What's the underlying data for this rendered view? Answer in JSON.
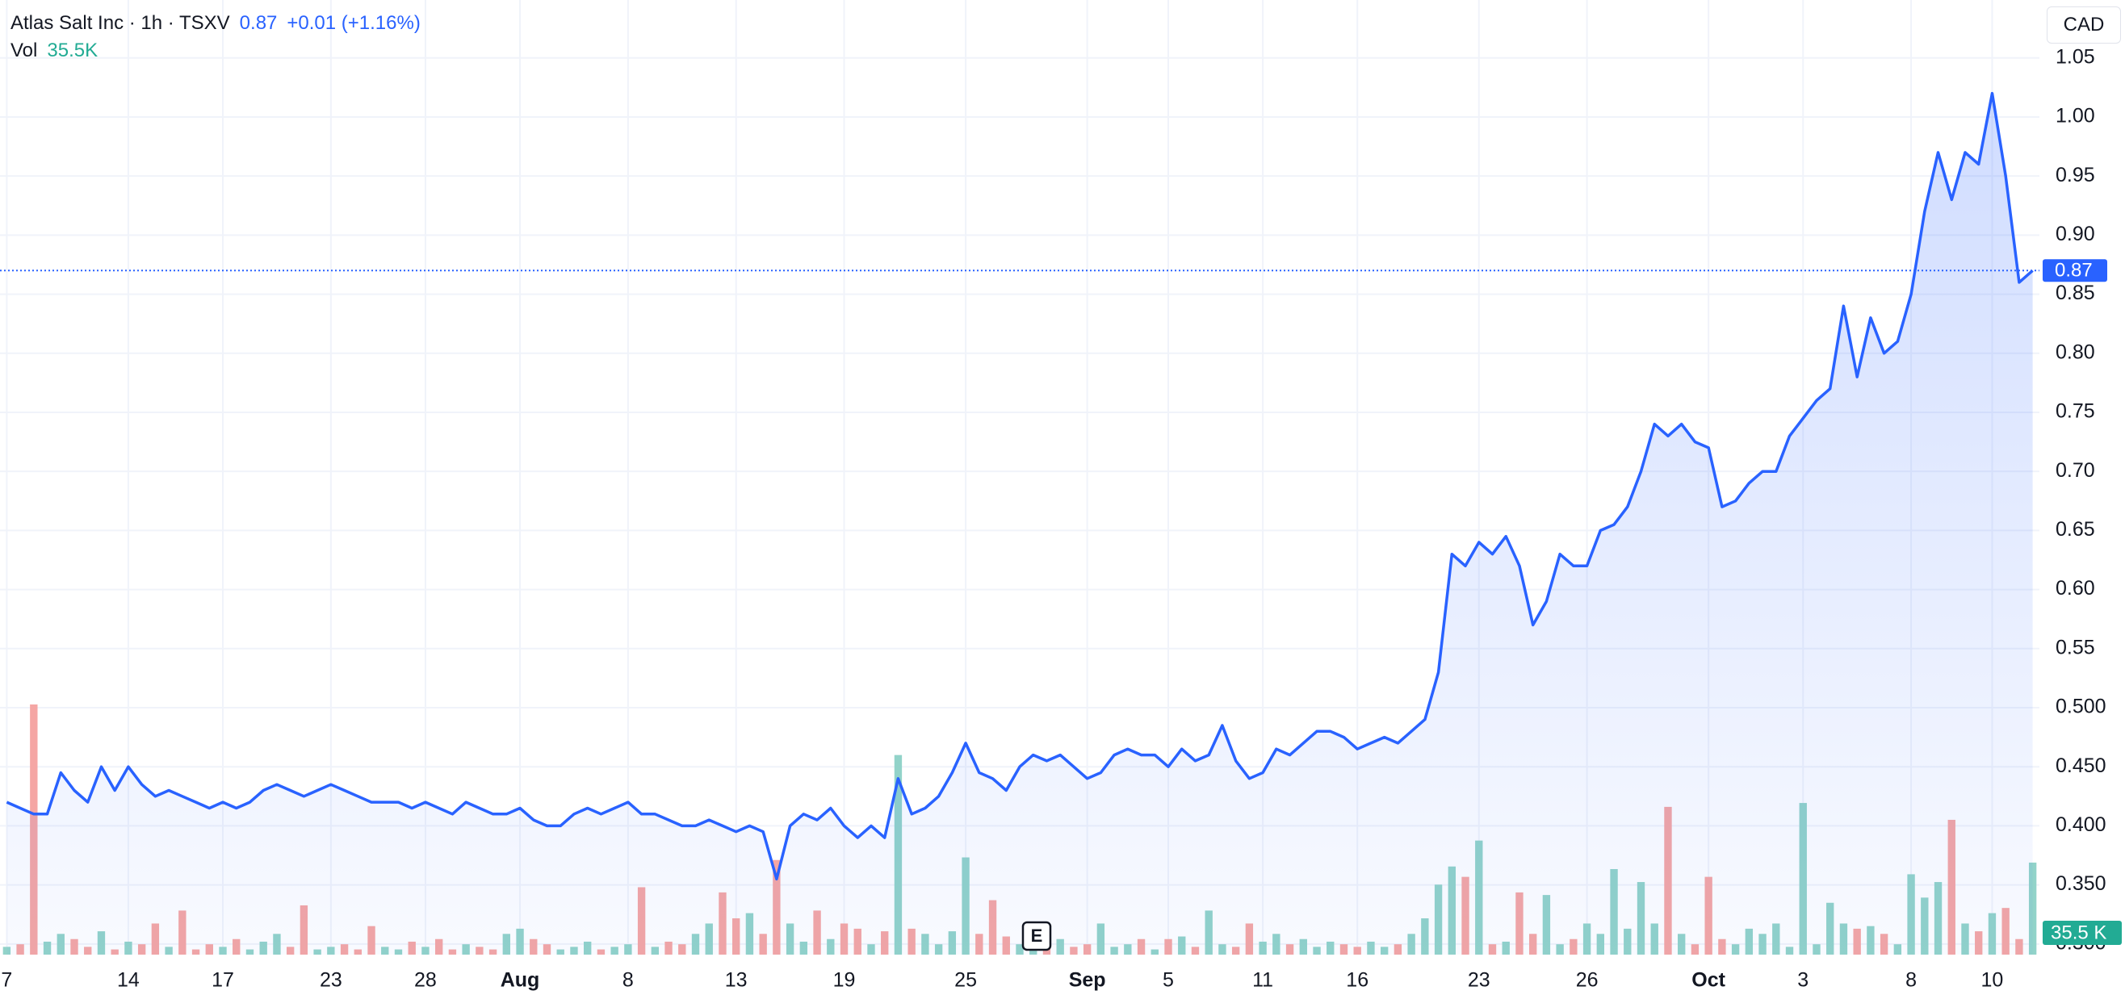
{
  "chart_data": {
    "type": "line",
    "title": "Atlas Salt Inc · 1h · TSXV",
    "change_label": "+0.01 (+1.16%)",
    "currency": "CAD",
    "event_label": "E",
    "color": "#2962ff",
    "grid": true,
    "ylim": [
      0.291,
      1.099
    ],
    "yticks": [
      1.05,
      {
        "value": 1,
        "label": "1.00"
      },
      0.95,
      {
        "value": 0.9,
        "label": "0.90"
      },
      0.85,
      {
        "value": 0.8,
        "label": "0.80"
      },
      0.75,
      {
        "value": 0.7,
        "label": "0.70"
      },
      0.65,
      {
        "value": 0.6,
        "label": "0.60"
      },
      0.55,
      {
        "value": 0.5,
        "label": "0.500"
      },
      {
        "value": 0.45,
        "label": "0.450"
      },
      {
        "value": 0.4,
        "label": "0.400"
      },
      {
        "value": 0.35,
        "label": "0.350"
      },
      {
        "value": 0.3,
        "label": "0.300"
      }
    ],
    "categories": [
      "7",
      null,
      null,
      null,
      null,
      null,
      null,
      null,
      null,
      "14",
      null,
      null,
      null,
      null,
      null,
      null,
      "17",
      null,
      null,
      null,
      null,
      null,
      null,
      null,
      "23",
      null,
      null,
      null,
      null,
      null,
      null,
      "28",
      null,
      null,
      null,
      null,
      null,
      null,
      "Aug",
      null,
      null,
      null,
      null,
      null,
      null,
      null,
      "8",
      null,
      null,
      null,
      null,
      null,
      null,
      null,
      "13",
      null,
      null,
      null,
      null,
      null,
      null,
      null,
      "19",
      null,
      null,
      null,
      null,
      null,
      null,
      null,
      null,
      "25",
      null,
      null,
      null,
      null,
      null,
      null,
      null,
      null,
      "Sep",
      null,
      null,
      null,
      null,
      null,
      "5",
      null,
      null,
      null,
      null,
      null,
      null,
      "11",
      null,
      null,
      null,
      null,
      null,
      null,
      "16",
      null,
      null,
      null,
      null,
      null,
      null,
      null,
      null,
      "23",
      null,
      null,
      null,
      null,
      null,
      null,
      null,
      "26",
      null,
      null,
      null,
      null,
      null,
      null,
      null,
      null,
      "Oct",
      null,
      null,
      null,
      null,
      null,
      null,
      "3",
      null,
      null,
      null,
      null,
      null,
      null,
      null,
      "8",
      null,
      null,
      null,
      null,
      null,
      "10",
      null,
      null,
      null
    ],
    "values": [
      0.42,
      0.415,
      0.41,
      0.41,
      0.445,
      0.43,
      0.42,
      0.45,
      0.43,
      0.45,
      0.435,
      0.425,
      0.43,
      0.425,
      0.42,
      0.415,
      0.42,
      0.415,
      0.42,
      0.43,
      0.435,
      0.43,
      0.425,
      0.43,
      0.435,
      0.43,
      0.425,
      0.42,
      0.42,
      0.42,
      0.415,
      0.42,
      0.415,
      0.41,
      0.42,
      0.415,
      0.41,
      0.41,
      0.415,
      0.405,
      0.4,
      0.4,
      0.41,
      0.415,
      0.41,
      0.415,
      0.42,
      0.41,
      0.41,
      0.405,
      0.4,
      0.4,
      0.405,
      0.4,
      0.395,
      0.4,
      0.395,
      0.355,
      0.4,
      0.41,
      0.405,
      0.415,
      0.4,
      0.39,
      0.4,
      0.39,
      0.44,
      0.41,
      0.415,
      0.425,
      0.445,
      0.47,
      0.445,
      0.44,
      0.43,
      0.45,
      0.46,
      0.455,
      0.46,
      0.45,
      0.44,
      0.445,
      0.46,
      0.465,
      0.46,
      0.46,
      0.45,
      0.465,
      0.455,
      0.46,
      0.485,
      0.455,
      0.44,
      0.445,
      0.465,
      0.46,
      0.47,
      0.48,
      0.48,
      0.475,
      0.465,
      0.47,
      0.475,
      0.47,
      0.48,
      0.49,
      0.53,
      0.63,
      0.62,
      0.64,
      0.63,
      0.645,
      0.62,
      0.57,
      0.59,
      0.63,
      0.62,
      0.62,
      0.65,
      0.655,
      0.67,
      0.7,
      0.74,
      0.73,
      0.74,
      0.725,
      0.72,
      0.67,
      0.675,
      0.69,
      0.7,
      0.7,
      0.73,
      0.745,
      0.76,
      0.77,
      0.84,
      0.78,
      0.83,
      0.8,
      0.81,
      0.85,
      0.92,
      0.97,
      0.93,
      0.97,
      0.96,
      1.02,
      0.95,
      0.86,
      0.87
    ],
    "volume": {
      "name": "Vol",
      "header_label": "35.5K",
      "up_color": "#92d3c9",
      "down_color": "#f5a6a4",
      "values": [
        3000,
        4000,
        96500,
        5000,
        8000,
        6000,
        3000,
        9000,
        2000,
        5000,
        4000,
        12000,
        3000,
        17000,
        2000,
        4000,
        3000,
        6000,
        2000,
        5000,
        8000,
        3000,
        19000,
        2000,
        3000,
        4000,
        2000,
        11000,
        3000,
        2000,
        5000,
        3000,
        6000,
        2000,
        4000,
        3000,
        2000,
        8000,
        10000,
        6000,
        4000,
        2000,
        3000,
        5000,
        2000,
        3000,
        4000,
        26000,
        3000,
        5000,
        4000,
        8000,
        12000,
        24000,
        14000,
        16000,
        8000,
        36500,
        12000,
        5000,
        17000,
        6000,
        12000,
        10000,
        4000,
        9000,
        77000,
        10000,
        8000,
        4000,
        9000,
        37500,
        8000,
        21000,
        7000,
        4000,
        3000,
        4000,
        6000,
        3000,
        4000,
        12000,
        3000,
        4000,
        6000,
        2000,
        6000,
        7000,
        3000,
        17000,
        4000,
        3000,
        12000,
        5000,
        8000,
        4000,
        6000,
        3000,
        5000,
        4000,
        3000,
        5000,
        3000,
        4000,
        8000,
        14000,
        27000,
        34000,
        30000,
        44000,
        4000,
        5000,
        24000,
        8000,
        23000,
        4000,
        6000,
        12000,
        8000,
        33000,
        10000,
        28000,
        12000,
        57000,
        8000,
        4000,
        30000,
        6000,
        4000,
        10000,
        8000,
        12000,
        3000,
        58500,
        4000,
        20000,
        12000,
        10000,
        11000,
        8000,
        4000,
        31000,
        22000,
        28000,
        52000,
        12000,
        9000,
        16000,
        18000,
        6000,
        35500
      ],
      "value_labels": [
        null,
        null,
        null,
        null,
        null,
        null,
        null,
        null,
        null,
        null,
        null,
        null,
        null,
        null,
        null,
        null,
        null,
        null,
        null,
        null,
        null,
        null,
        null,
        null,
        null,
        null,
        null,
        null,
        null,
        null,
        null,
        null,
        null,
        null,
        null,
        null,
        null,
        null,
        null,
        null,
        null,
        null,
        null,
        null,
        null,
        null,
        null,
        null,
        null,
        null,
        null,
        null,
        null,
        null,
        null,
        null,
        null,
        null,
        null,
        null,
        null,
        null,
        null,
        null,
        null,
        null,
        null,
        null,
        null,
        null,
        null,
        null,
        null,
        null,
        null,
        null,
        null,
        null,
        null,
        null,
        null,
        null,
        null,
        null,
        null,
        null,
        null,
        null,
        null,
        null,
        null,
        null,
        null,
        null,
        null,
        null,
        null,
        null,
        null,
        null,
        null,
        null,
        null,
        null,
        null,
        null,
        null,
        null,
        null,
        null,
        null,
        null,
        null,
        null,
        null,
        null,
        null,
        null,
        null,
        null,
        null,
        null,
        null,
        null,
        null,
        null,
        null,
        null,
        null,
        null,
        null,
        null,
        null,
        null,
        null,
        null,
        null,
        null,
        null,
        null,
        null,
        null,
        null,
        null,
        null,
        null,
        null,
        null,
        null,
        null,
        "35.5 K"
      ]
    }
  }
}
